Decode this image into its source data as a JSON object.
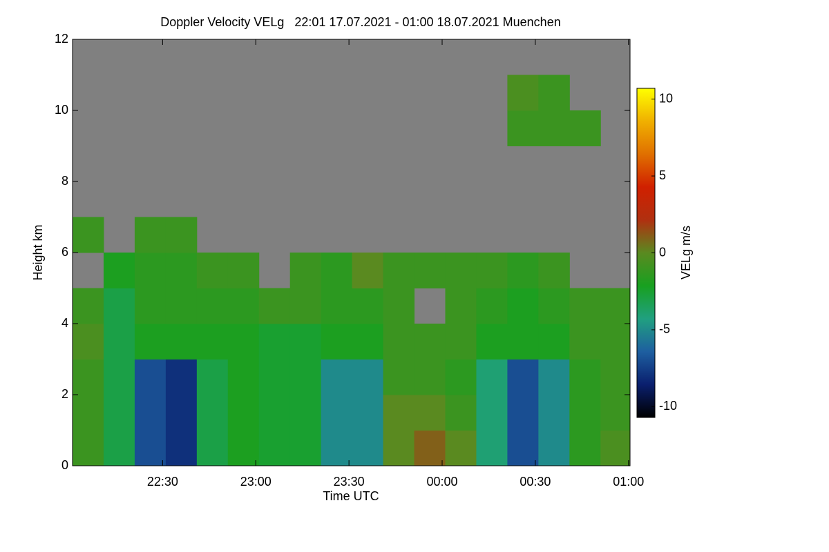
{
  "chart_data": {
    "type": "heatmap",
    "title": "Doppler Velocity VELg   22:01 17.07.2021 - 01:00 18.07.2021 Muenchen",
    "xlabel": "Time UTC",
    "ylabel": "Height km",
    "colorbar_label": "VELg m/s",
    "x": [
      1,
      11,
      21,
      31,
      41,
      51,
      61,
      71,
      81,
      91,
      101,
      111,
      121,
      131,
      141,
      151,
      161,
      171,
      180.5
    ],
    "y": [
      0,
      1,
      2,
      3,
      4,
      5,
      6,
      7,
      8,
      9,
      10,
      11,
      12
    ],
    "z": [
      [
        -1,
        -3,
        -7,
        -8,
        -3,
        -2,
        -2.5,
        -2.5,
        -5,
        -5,
        0,
        1,
        0,
        -4,
        -7,
        -5,
        -1.5,
        -0.5
      ],
      [
        -1,
        -3,
        -7,
        -8,
        -3,
        -2,
        -2.5,
        -2.5,
        -5,
        -5,
        0,
        0,
        -1,
        -4,
        -7,
        -5,
        -1.5,
        -1
      ],
      [
        -1,
        -3,
        -7,
        -8,
        -3,
        -2,
        -2.5,
        -2.5,
        -5,
        -5,
        -1,
        -1,
        -1.5,
        -4,
        -7,
        -5,
        -1.5,
        -1
      ],
      [
        -0.5,
        -3,
        -2,
        -2,
        -2,
        -2,
        -2.5,
        -2.5,
        -2,
        -2,
        -1,
        -1,
        -1,
        -2,
        -2,
        -2,
        -1,
        -1
      ],
      [
        -1,
        -3,
        -1.5,
        -1.5,
        -1.5,
        -1.5,
        -1,
        -1,
        -1.5,
        -1.5,
        -1,
        null,
        -1,
        -1.5,
        -2,
        -1.5,
        -1,
        -1
      ],
      [
        null,
        -2,
        -1.5,
        -1.5,
        -1,
        -1,
        null,
        -1,
        -1.5,
        0,
        -1,
        -1,
        -1,
        -1,
        -1.5,
        -1,
        null,
        null
      ],
      [
        -1,
        null,
        -1,
        -1,
        null,
        null,
        null,
        null,
        null,
        null,
        null,
        null,
        null,
        null,
        null,
        null,
        null,
        null
      ],
      [
        null,
        null,
        null,
        null,
        null,
        null,
        null,
        null,
        null,
        null,
        null,
        null,
        null,
        null,
        null,
        null,
        null,
        null
      ],
      [
        null,
        null,
        null,
        null,
        null,
        null,
        null,
        null,
        null,
        null,
        null,
        null,
        null,
        null,
        null,
        null,
        null,
        null
      ],
      [
        null,
        null,
        null,
        null,
        null,
        null,
        null,
        null,
        null,
        null,
        null,
        null,
        null,
        null,
        -1,
        -1,
        -1,
        null
      ],
      [
        null,
        null,
        null,
        null,
        null,
        null,
        null,
        null,
        null,
        null,
        null,
        null,
        null,
        null,
        -0.5,
        -1,
        null,
        null
      ],
      [
        null,
        null,
        null,
        null,
        null,
        null,
        null,
        null,
        null,
        null,
        null,
        null,
        null,
        null,
        null,
        null,
        null,
        null
      ]
    ],
    "xlim": [
      1,
      180.5
    ],
    "ylim": [
      0,
      12
    ],
    "xticks": [
      {
        "value": 30,
        "label": "22:30"
      },
      {
        "value": 60,
        "label": "23:00"
      },
      {
        "value": 90,
        "label": "23:30"
      },
      {
        "value": 120,
        "label": "00:00"
      },
      {
        "value": 150,
        "label": "00:30"
      },
      {
        "value": 180,
        "label": "01:00"
      }
    ],
    "yticks": [
      0,
      2,
      4,
      6,
      8,
      10,
      12
    ],
    "clim": [
      -10.7,
      10.7
    ],
    "cticks": [
      10,
      5,
      0,
      -5,
      -10
    ],
    "colorscale": [
      "#000000",
      "#0a1f6e",
      "#1e5fa0",
      "#20a080",
      "#18a020",
      "#5a8a20",
      "#b03010",
      "#d02000",
      "#e07000",
      "#f0b000",
      "#ffff00"
    ],
    "nan_color": "#808080"
  }
}
